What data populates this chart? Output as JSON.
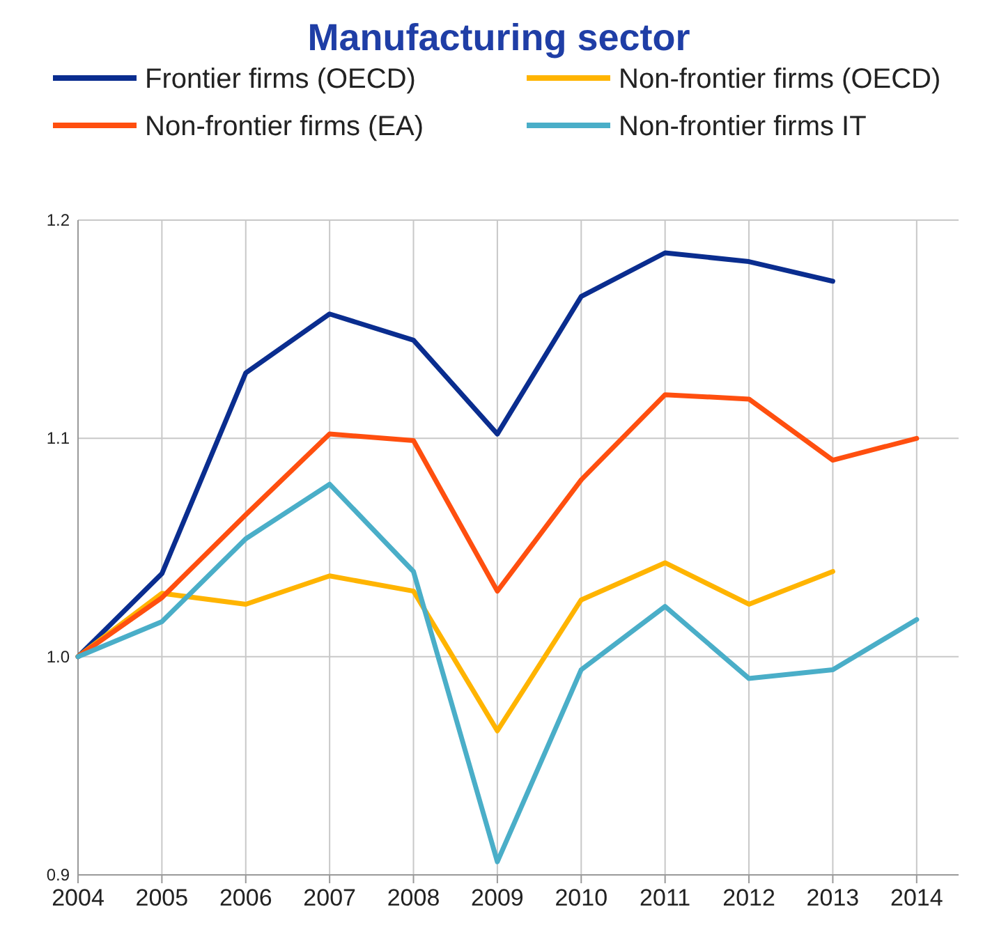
{
  "chart_data": {
    "type": "line",
    "title": "Manufacturing sector",
    "x": [
      2004,
      2005,
      2006,
      2007,
      2008,
      2009,
      2010,
      2011,
      2012,
      2013,
      2014
    ],
    "xlim": [
      2004,
      2014.5
    ],
    "xticks": [
      2004,
      2005,
      2006,
      2007,
      2008,
      2009,
      2010,
      2011,
      2012,
      2013,
      2014
    ],
    "ylim": [
      0.9,
      1.2
    ],
    "yticks": [
      {
        "value": 0.9,
        "label": "0.9"
      },
      {
        "value": 1.0,
        "label": "1.0"
      },
      {
        "value": 1.1,
        "label": "1.1"
      },
      {
        "value": 1.2,
        "label": "1.2"
      }
    ],
    "grid": true,
    "legend": "top",
    "line_style": "solid",
    "marker": "none",
    "series": [
      {
        "name": "Frontier firms (OECD)",
        "color": "#0a2d8f",
        "values": [
          1.0,
          1.038,
          1.13,
          1.157,
          1.145,
          1.102,
          1.165,
          1.185,
          1.181,
          1.172,
          null
        ]
      },
      {
        "name": "Non-frontier firms (OECD)",
        "color": "#ffb400",
        "values": [
          1.0,
          1.029,
          1.024,
          1.037,
          1.03,
          0.966,
          1.026,
          1.043,
          1.024,
          1.039,
          null
        ]
      },
      {
        "name": "Non-frontier firms (EA)",
        "color": "#ff4f0f",
        "values": [
          1.0,
          1.027,
          1.065,
          1.102,
          1.099,
          1.03,
          1.081,
          1.12,
          1.118,
          1.09,
          1.1
        ]
      },
      {
        "name": "Non-frontier firms IT",
        "color": "#4aaec8",
        "values": [
          1.0,
          1.016,
          1.054,
          1.079,
          1.039,
          0.906,
          0.994,
          1.023,
          0.99,
          0.994,
          1.017
        ]
      }
    ]
  }
}
